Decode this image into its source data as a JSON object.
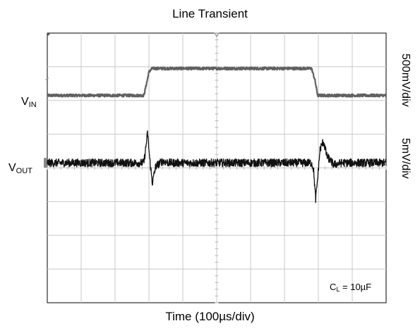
{
  "chart_data": {
    "type": "line",
    "title": "Line Transient",
    "xlabel": "Time (100µs/div)",
    "x_divisions": 10,
    "y_divisions": 8,
    "grid": true,
    "minor_ticks_per_div": 5,
    "xlim_div": [
      0,
      10
    ],
    "series": [
      {
        "name_main": "V",
        "name_sub": "IN",
        "scale_label": "500mV/div",
        "color": "#606060",
        "baseline_div": 6.15,
        "points_div": [
          [
            0,
            6.15
          ],
          [
            2.85,
            6.15
          ],
          [
            2.95,
            6.6
          ],
          [
            3.0,
            6.85
          ],
          [
            3.1,
            6.95
          ],
          [
            7.8,
            6.95
          ],
          [
            7.9,
            6.6
          ],
          [
            7.98,
            6.15
          ],
          [
            10,
            6.15
          ]
        ],
        "noise_div": 0.04
      },
      {
        "name_main": "V",
        "name_sub": "OUT",
        "scale_label": "5mV/div",
        "color": "#111111",
        "baseline_div": 4.15,
        "points_div": [
          [
            0,
            4.15
          ],
          [
            2.85,
            4.15
          ],
          [
            2.92,
            4.7
          ],
          [
            2.96,
            5.05
          ],
          [
            3.02,
            4.3
          ],
          [
            3.1,
            3.55
          ],
          [
            3.2,
            4.05
          ],
          [
            3.4,
            4.2
          ],
          [
            3.6,
            4.15
          ],
          [
            7.8,
            4.15
          ],
          [
            7.86,
            3.95
          ],
          [
            7.92,
            3.05
          ],
          [
            7.97,
            3.6
          ],
          [
            8.05,
            4.55
          ],
          [
            8.15,
            4.8
          ],
          [
            8.25,
            4.35
          ],
          [
            8.45,
            4.1
          ],
          [
            8.7,
            4.15
          ],
          [
            10,
            4.15
          ]
        ],
        "noise_div": 0.12
      }
    ],
    "annotation": {
      "main": "C",
      "sub": "L",
      "rest": " = 10µF"
    }
  }
}
